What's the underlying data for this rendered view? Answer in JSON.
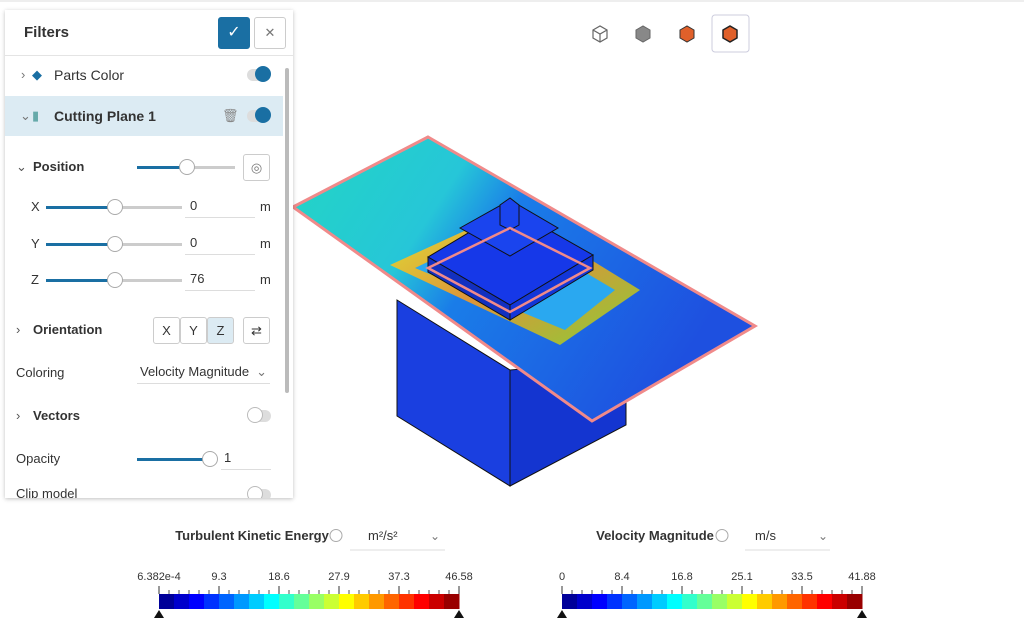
{
  "panel": {
    "title": "Filters",
    "items": [
      {
        "label": "Parts Color"
      },
      {
        "label": "Cutting Plane 1"
      }
    ],
    "position": {
      "label": "Position",
      "axes": [
        {
          "name": "X",
          "value": 0,
          "unit": "m"
        },
        {
          "name": "Y",
          "value": 0,
          "unit": "m"
        },
        {
          "name": "Z",
          "value": 76,
          "unit": "m"
        }
      ]
    },
    "orientation": {
      "label": "Orientation",
      "buttons": [
        "X",
        "Y",
        "Z"
      ]
    },
    "coloring": {
      "label": "Coloring",
      "value": "Velocity Magnitude"
    },
    "vectors": {
      "label": "Vectors"
    },
    "opacity": {
      "label": "Opacity",
      "value": 1
    },
    "clip": {
      "label": "Clip model"
    }
  },
  "legends": [
    {
      "title": "Turbulent Kinetic Energy",
      "unit": "m²/s²",
      "ticks": [
        "6.382e-4",
        "9.3",
        "18.6",
        "27.9",
        "37.3",
        "46.58"
      ]
    },
    {
      "title": "Velocity Magnitude",
      "unit": "m/s",
      "ticks": [
        "0",
        "8.4",
        "16.8",
        "25.1",
        "33.5",
        "41.88"
      ]
    }
  ]
}
